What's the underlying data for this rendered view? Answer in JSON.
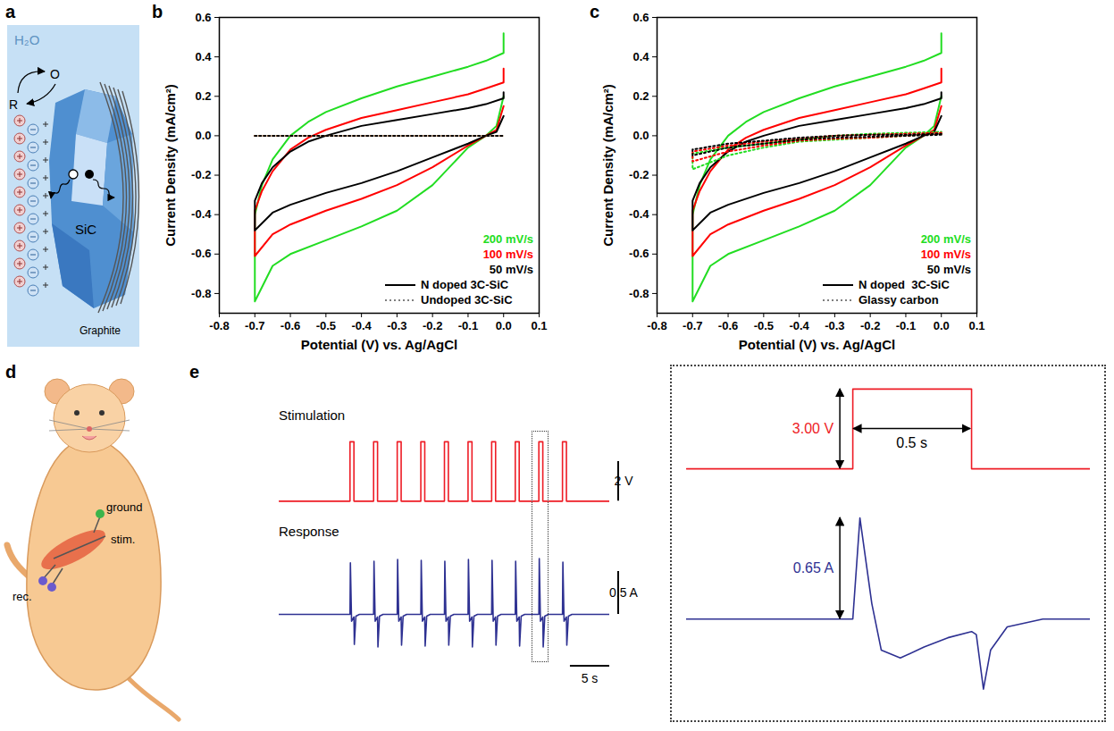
{
  "chart_data": [
    {
      "panel": "b",
      "type": "line",
      "x_label": "Potential (V) vs. Ag/AgCl",
      "y_label": "Current Density (mA/cm²)",
      "xlim": [
        -0.8,
        0.1
      ],
      "ylim": [
        -0.9,
        0.6
      ],
      "xticks": [
        -0.8,
        -0.7,
        -0.6,
        -0.5,
        -0.4,
        -0.3,
        -0.2,
        -0.1,
        {
          "value": 0,
          "label": "0.0"
        },
        0.1
      ],
      "yticks": [
        -0.8,
        -0.6,
        -0.4,
        -0.2,
        {
          "value": 0,
          "label": "0.0"
        },
        0.2,
        0.4,
        0.6
      ],
      "legend": "lower right",
      "series": [
        {
          "name": "200 mV/s",
          "color": "#22dd22",
          "line_style": "solid",
          "x": [
            0,
            -0.02,
            -0.05,
            -0.1,
            -0.2,
            -0.3,
            -0.4,
            -0.5,
            -0.6,
            -0.65,
            -0.7,
            -0.7,
            -0.68,
            -0.65,
            -0.6,
            -0.55,
            -0.5,
            -0.4,
            -0.3,
            -0.2,
            -0.1,
            -0.05,
            0,
            0
          ],
          "values": [
            0.2,
            0.05,
            0.0,
            -0.06,
            -0.25,
            -0.38,
            -0.46,
            -0.53,
            -0.6,
            -0.66,
            -0.84,
            -0.4,
            -0.25,
            -0.12,
            0.0,
            0.07,
            0.12,
            0.19,
            0.25,
            0.3,
            0.35,
            0.38,
            0.42,
            0.52
          ]
        },
        {
          "name": "100 mV/s",
          "color": "#ff0000",
          "line_style": "solid",
          "x": [
            0,
            -0.02,
            -0.05,
            -0.1,
            -0.2,
            -0.3,
            -0.4,
            -0.5,
            -0.6,
            -0.65,
            -0.7,
            -0.7,
            -0.68,
            -0.65,
            -0.6,
            -0.55,
            -0.5,
            -0.4,
            -0.3,
            -0.2,
            -0.1,
            -0.05,
            0,
            0
          ],
          "values": [
            0.15,
            0.03,
            0.0,
            -0.05,
            -0.16,
            -0.25,
            -0.32,
            -0.38,
            -0.45,
            -0.5,
            -0.61,
            -0.38,
            -0.28,
            -0.18,
            -0.07,
            -0.01,
            0.03,
            0.09,
            0.13,
            0.17,
            0.21,
            0.24,
            0.27,
            0.34
          ]
        },
        {
          "name": "50 mV/s",
          "color": "#000000",
          "line_style": "solid",
          "x": [
            0,
            -0.02,
            -0.05,
            -0.1,
            -0.2,
            -0.3,
            -0.4,
            -0.5,
            -0.6,
            -0.65,
            -0.7,
            -0.7,
            -0.68,
            -0.65,
            -0.6,
            -0.55,
            -0.5,
            -0.4,
            -0.3,
            -0.2,
            -0.1,
            -0.05,
            0,
            0
          ],
          "values": [
            0.1,
            0.02,
            0.0,
            -0.04,
            -0.11,
            -0.18,
            -0.24,
            -0.29,
            -0.35,
            -0.39,
            -0.48,
            -0.33,
            -0.24,
            -0.16,
            -0.08,
            -0.03,
            0.0,
            0.05,
            0.08,
            0.11,
            0.14,
            0.16,
            0.19,
            0.22
          ]
        },
        {
          "name": "Undoped 3C-SiC",
          "color": "#22dd22",
          "line_style": "dotted",
          "x": [
            -0.7,
            0
          ],
          "values": [
            0,
            0
          ]
        },
        {
          "name": "Undoped 3C-SiC",
          "color": "#ff0000",
          "line_style": "dotted",
          "x": [
            -0.7,
            0
          ],
          "values": [
            0,
            0
          ]
        },
        {
          "name": "Undoped 3C-SiC",
          "color": "#000000",
          "line_style": "dotted",
          "x": [
            -0.7,
            0
          ],
          "values": [
            0,
            0
          ]
        }
      ],
      "legend_entries": [
        {
          "label": "N doped 3C-SiC",
          "color": "#000000",
          "line_style": "solid"
        },
        {
          "label": "Undoped 3C-SiC",
          "color": "#7f7f7f",
          "line_style": "dotted"
        }
      ]
    },
    {
      "panel": "c",
      "type": "line",
      "x_label": "Potential (V) vs. Ag/AgCl",
      "y_label": "Current Density (mA/cm²)",
      "xlim": [
        -0.8,
        0.1
      ],
      "ylim": [
        -0.9,
        0.6
      ],
      "xticks": [
        -0.8,
        -0.7,
        -0.6,
        -0.5,
        -0.4,
        -0.3,
        -0.2,
        -0.1,
        {
          "value": 0,
          "label": "0.0"
        },
        0.1
      ],
      "yticks": [
        -0.8,
        -0.6,
        -0.4,
        -0.2,
        {
          "value": 0,
          "label": "0.0"
        },
        0.2,
        0.4,
        0.6
      ],
      "legend": "lower right",
      "series": [
        {
          "name": "200 mV/s",
          "color": "#22dd22",
          "line_style": "solid",
          "x": [
            0,
            -0.02,
            -0.05,
            -0.1,
            -0.2,
            -0.3,
            -0.4,
            -0.5,
            -0.6,
            -0.65,
            -0.7,
            -0.7,
            -0.68,
            -0.65,
            -0.6,
            -0.55,
            -0.5,
            -0.4,
            -0.3,
            -0.2,
            -0.1,
            -0.05,
            0,
            0
          ],
          "values": [
            0.2,
            0.05,
            0.0,
            -0.06,
            -0.25,
            -0.38,
            -0.46,
            -0.53,
            -0.6,
            -0.66,
            -0.84,
            -0.4,
            -0.25,
            -0.12,
            0.0,
            0.07,
            0.12,
            0.19,
            0.25,
            0.3,
            0.35,
            0.38,
            0.42,
            0.52
          ]
        },
        {
          "name": "100 mV/s",
          "color": "#ff0000",
          "line_style": "solid",
          "x": [
            0,
            -0.02,
            -0.05,
            -0.1,
            -0.2,
            -0.3,
            -0.4,
            -0.5,
            -0.6,
            -0.65,
            -0.7,
            -0.7,
            -0.68,
            -0.65,
            -0.6,
            -0.55,
            -0.5,
            -0.4,
            -0.3,
            -0.2,
            -0.1,
            -0.05,
            0,
            0
          ],
          "values": [
            0.15,
            0.03,
            0.0,
            -0.05,
            -0.16,
            -0.25,
            -0.32,
            -0.38,
            -0.45,
            -0.5,
            -0.61,
            -0.38,
            -0.28,
            -0.18,
            -0.07,
            -0.01,
            0.03,
            0.09,
            0.13,
            0.17,
            0.21,
            0.24,
            0.27,
            0.34
          ]
        },
        {
          "name": "50 mV/s",
          "color": "#000000",
          "line_style": "solid",
          "x": [
            0,
            -0.02,
            -0.05,
            -0.1,
            -0.2,
            -0.3,
            -0.4,
            -0.5,
            -0.6,
            -0.65,
            -0.7,
            -0.7,
            -0.68,
            -0.65,
            -0.6,
            -0.55,
            -0.5,
            -0.4,
            -0.3,
            -0.2,
            -0.1,
            -0.05,
            0,
            0
          ],
          "values": [
            0.1,
            0.02,
            0.0,
            -0.04,
            -0.11,
            -0.18,
            -0.24,
            -0.29,
            -0.35,
            -0.39,
            -0.48,
            -0.33,
            -0.24,
            -0.16,
            -0.08,
            -0.03,
            0.0,
            0.05,
            0.08,
            0.11,
            0.14,
            0.16,
            0.19,
            0.22
          ]
        },
        {
          "name": "Glassy carbon",
          "color": "#22dd22",
          "line_style": "dotted",
          "x": [
            0,
            -0.1,
            -0.2,
            -0.3,
            -0.4,
            -0.5,
            -0.6,
            -0.7,
            -0.7,
            -0.6,
            -0.5,
            -0.4,
            -0.3,
            -0.2,
            -0.1,
            0
          ],
          "values": [
            0.01,
            0.0,
            -0.01,
            -0.02,
            -0.03,
            -0.06,
            -0.1,
            -0.17,
            -0.09,
            -0.06,
            -0.04,
            -0.02,
            0.0,
            0.01,
            0.015,
            0.02
          ]
        },
        {
          "name": "Glassy carbon",
          "color": "#ff0000",
          "line_style": "dotted",
          "x": [
            0,
            -0.1,
            -0.2,
            -0.3,
            -0.4,
            -0.5,
            -0.6,
            -0.7,
            -0.7,
            -0.6,
            -0.5,
            -0.4,
            -0.3,
            -0.2,
            -0.1,
            0
          ],
          "values": [
            0.01,
            0.0,
            -0.01,
            -0.015,
            -0.025,
            -0.05,
            -0.08,
            -0.13,
            -0.08,
            -0.05,
            -0.03,
            -0.015,
            0.0,
            0.005,
            0.01,
            0.015
          ]
        },
        {
          "name": "Glassy carbon",
          "color": "#000000",
          "line_style": "dotted",
          "x": [
            0,
            -0.1,
            -0.2,
            -0.3,
            -0.4,
            -0.5,
            -0.6,
            -0.7,
            -0.7,
            -0.6,
            -0.5,
            -0.4,
            -0.3,
            -0.2,
            -0.1,
            0
          ],
          "values": [
            0.005,
            0.0,
            -0.005,
            -0.01,
            -0.02,
            -0.04,
            -0.06,
            -0.1,
            -0.07,
            -0.04,
            -0.025,
            -0.01,
            0.0,
            0.005,
            0.005,
            0.01
          ]
        }
      ],
      "legend_entries": [
        {
          "label": "N doped  3C-SiC",
          "color": "#000000",
          "line_style": "solid"
        },
        {
          "label": "Glassy carbon",
          "color": "#7f7f7f",
          "line_style": "dotted"
        }
      ]
    },
    {
      "panel": "e",
      "type": "line",
      "title": "Stimulation",
      "tick_labels": false,
      "xlim": [
        0,
        42
      ],
      "ylim": [
        -0.3,
        3.4
      ],
      "x": [
        0,
        9,
        9,
        9.5,
        9.5,
        12,
        12,
        12.5,
        12.5,
        15,
        15,
        15.5,
        15.5,
        18,
        18,
        18.5,
        18.5,
        21,
        21,
        21.5,
        21.5,
        24,
        24,
        24.5,
        24.5,
        27,
        27,
        27.5,
        27.5,
        30,
        30,
        30.5,
        30.5,
        33,
        33,
        33.5,
        33.5,
        36,
        36,
        36.5,
        36.5,
        42
      ],
      "series": [
        {
          "color": "#ee1c25",
          "values": [
            0,
            0,
            3,
            3,
            0,
            0,
            3,
            3,
            0,
            0,
            3,
            3,
            0,
            0,
            3,
            3,
            0,
            0,
            3,
            3,
            0,
            0,
            3,
            3,
            0,
            0,
            3,
            3,
            0,
            0,
            3,
            3,
            0,
            0,
            3,
            3,
            0,
            0,
            3,
            3,
            0,
            0
          ]
        }
      ],
      "scale_bars": [
        {
          "axis": "y",
          "value": 2,
          "label": "2 V"
        }
      ]
    },
    {
      "type": "line",
      "title": "Response",
      "tick_labels": false,
      "xlim": [
        0,
        42
      ],
      "ylim": [
        -0.5,
        0.75
      ],
      "x": [
        0,
        9,
        9.05,
        9.2,
        9.5,
        9.55,
        9.75,
        10.2,
        12,
        12.05,
        12.2,
        12.5,
        12.55,
        12.75,
        13.2,
        15,
        15.05,
        15.2,
        15.5,
        15.55,
        15.75,
        16.2,
        18,
        18.05,
        18.2,
        18.5,
        18.55,
        18.75,
        19.2,
        21,
        21.05,
        21.2,
        21.5,
        21.55,
        21.75,
        22.2,
        24,
        24.05,
        24.2,
        24.5,
        24.55,
        24.75,
        25.2,
        27,
        27.05,
        27.2,
        27.5,
        27.55,
        27.75,
        28.2,
        30,
        30.05,
        30.2,
        30.5,
        30.55,
        30.75,
        31.2,
        33,
        33.05,
        33.2,
        33.5,
        33.55,
        33.75,
        34.2,
        36,
        36.05,
        36.2,
        36.5,
        36.55,
        36.75,
        37.2,
        42
      ],
      "series": [
        {
          "color": "#2e3192",
          "values": [
            0,
            0,
            0.6,
            -0.08,
            -0.03,
            -0.35,
            -0.02,
            0,
            0,
            0.62,
            -0.08,
            -0.03,
            -0.38,
            -0.02,
            0,
            0,
            0.64,
            -0.08,
            -0.03,
            -0.36,
            -0.02,
            0,
            0,
            0.63,
            -0.08,
            -0.03,
            -0.37,
            -0.02,
            0,
            0,
            0.62,
            -0.08,
            -0.03,
            -0.36,
            -0.02,
            0,
            0,
            0.64,
            -0.08,
            -0.03,
            -0.38,
            -0.02,
            0,
            0,
            0.63,
            -0.08,
            -0.03,
            -0.36,
            -0.02,
            0,
            0,
            0.62,
            -0.08,
            -0.03,
            -0.37,
            -0.02,
            0,
            0,
            0.65,
            -0.08,
            -0.03,
            -0.38,
            -0.02,
            0,
            0,
            0.61,
            -0.08,
            -0.03,
            -0.36,
            -0.02,
            0,
            0
          ]
        }
      ],
      "scale_bars": [
        {
          "axis": "y",
          "value": 0.5,
          "label": "0.5 A"
        },
        {
          "axis": "x",
          "value": 5,
          "label": "5 s"
        }
      ]
    },
    {
      "type": "line",
      "tick_labels": false,
      "xlim": [
        32.3,
        34.0
      ],
      "ylim": [
        -0.3,
        3.4
      ],
      "x": [
        32.3,
        33,
        33,
        33.5,
        33.5,
        34
      ],
      "series": [
        {
          "color": "#ee1c25",
          "values": [
            0,
            0,
            3,
            3,
            0,
            0
          ]
        }
      ],
      "annotations": [
        {
          "axis": "y",
          "value": 3,
          "label": "3.00 V",
          "color": "#ee1c25"
        },
        {
          "axis": "x",
          "value": 0.5,
          "label": "0.5 s",
          "color": "#000000"
        }
      ]
    },
    {
      "type": "line",
      "tick_labels": false,
      "xlim": [
        32.3,
        34.0
      ],
      "ylim": [
        -0.55,
        0.8
      ],
      "x": [
        32.3,
        32.6,
        33.0,
        33.03,
        33.08,
        33.12,
        33.2,
        33.3,
        33.4,
        33.5,
        33.52,
        33.55,
        33.58,
        33.65,
        33.8,
        34.0
      ],
      "series": [
        {
          "color": "#2e3192",
          "values": [
            0.0,
            0.0,
            0.0,
            0.65,
            0.1,
            -0.2,
            -0.25,
            -0.18,
            -0.12,
            -0.08,
            -0.1,
            -0.45,
            -0.2,
            -0.05,
            0.0,
            0.0
          ]
        }
      ],
      "annotations": [
        {
          "axis": "y",
          "value": 0.65,
          "label": "0.65 A",
          "color": "#2e3192"
        }
      ]
    }
  ],
  "diagrams": [
    {
      "panel": "a",
      "labels": {
        "water": "H₂O",
        "oxidized": "O",
        "reduced": "R",
        "semiconductor": "SiC",
        "contact": "Graphite"
      }
    },
    {
      "panel": "d",
      "labels": {
        "ground": "ground",
        "stimulation": "stim.",
        "recording": "rec."
      }
    }
  ]
}
